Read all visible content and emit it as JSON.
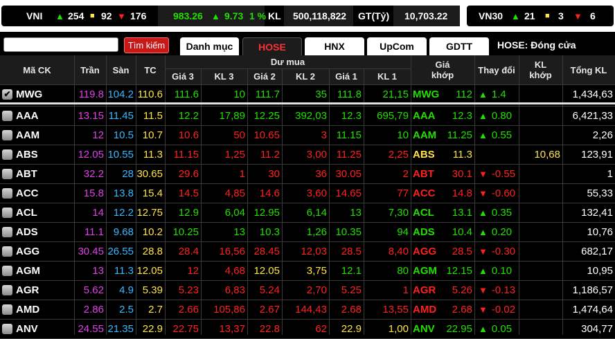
{
  "indexes": {
    "vni": {
      "name": "VNI",
      "up": "254",
      "flat": "92",
      "down": "176",
      "value": "983.26",
      "change": "9.73",
      "pct": "1 %",
      "kl_label": "KL",
      "kl": "500,118,822",
      "gt_label": "GT(Tỷ)",
      "gt": "10,703.22"
    },
    "vn30": {
      "name": "VN30",
      "up": "21",
      "flat": "3",
      "down": "6"
    }
  },
  "toolbar": {
    "search_placeholder": "",
    "search_button": "Tìm kiếm",
    "tabs": [
      "Danh mục",
      "HOSE",
      "HNX",
      "UpCom",
      "GDTT"
    ],
    "active_tab": "HOSE",
    "market_status": "HOSE:  Đóng cửa"
  },
  "headers": {
    "symbol": "Mã CK",
    "ceiling": "Trần",
    "floor": "Sàn",
    "ref": "TC",
    "bid_group": "Dư mua",
    "bid3": "Giá 3",
    "bidvol3": "KL 3",
    "bid2": "Giá 2",
    "bidvol2": "KL 2",
    "bid1": "Giá 1",
    "bidvol1": "KL 1",
    "match_price": "Giá\nkhớp",
    "change": "Thay đổi",
    "match_vol": "KL\nkhớp",
    "total_vol": "Tổng KL"
  },
  "colors": {
    "ceiling": "#e040e8",
    "floor": "#38b8ff",
    "ref": "#ffe44a",
    "up": "#22e000",
    "down": "#ff2020"
  },
  "rows": [
    {
      "sym": "MWG",
      "checked": true,
      "ceil": "119.8",
      "floor": "104.2",
      "ref": "110.6",
      "p3": "111.6",
      "v3": "10",
      "p2": "111.7",
      "v2": "35",
      "p1": "111.8",
      "v1": "21,15",
      "price": "112",
      "chg": "1.4",
      "dir": "up",
      "kl": "",
      "total": "1,434,63",
      "c3": "green",
      "c2": "green",
      "c1": "green",
      "cp": "green"
    },
    {
      "sym": "AAA",
      "checked": false,
      "ceil": "13.15",
      "floor": "11.45",
      "ref": "11.5",
      "p3": "12.2",
      "v3": "17,89",
      "p2": "12.25",
      "v2": "392,03",
      "p1": "12.3",
      "v1": "695,79",
      "price": "12.3",
      "chg": "0.80",
      "dir": "up",
      "kl": "",
      "total": "6,421,33",
      "c3": "green",
      "c2": "green",
      "c1": "green",
      "cp": "green"
    },
    {
      "sym": "AAM",
      "checked": false,
      "ceil": "12",
      "floor": "10.5",
      "ref": "10.7",
      "p3": "10.6",
      "v3": "50",
      "p2": "10.65",
      "v2": "3",
      "p1": "11.15",
      "v1": "10",
      "price": "11.25",
      "chg": "0.55",
      "dir": "up",
      "kl": "",
      "total": "2,26",
      "c3": "red",
      "c2": "red",
      "c1": "green",
      "cp": "green"
    },
    {
      "sym": "ABS",
      "checked": false,
      "ceil": "12.05",
      "floor": "10.55",
      "ref": "11.3",
      "p3": "11.15",
      "v3": "1,25",
      "p2": "11.2",
      "v2": "3,00",
      "p1": "11.25",
      "v1": "2,25",
      "price": "11.3",
      "chg": "",
      "dir": "flat",
      "kl": "10,68",
      "total": "123,91",
      "c3": "red",
      "c2": "red",
      "c1": "red",
      "cp": "yellow"
    },
    {
      "sym": "ABT",
      "checked": false,
      "ceil": "32.2",
      "floor": "28",
      "ref": "30.65",
      "p3": "29.6",
      "v3": "1",
      "p2": "30",
      "v2": "36",
      "p1": "30.05",
      "v1": "2",
      "price": "30.1",
      "chg": "-0.55",
      "dir": "down",
      "kl": "",
      "total": "1",
      "c3": "red",
      "c2": "red",
      "c1": "red",
      "cp": "red"
    },
    {
      "sym": "ACC",
      "checked": false,
      "ceil": "15.8",
      "floor": "13.8",
      "ref": "15.4",
      "p3": "14.5",
      "v3": "4,85",
      "p2": "14.6",
      "v2": "3,60",
      "p1": "14.65",
      "v1": "77",
      "price": "14.8",
      "chg": "-0.60",
      "dir": "down",
      "kl": "",
      "total": "55,33",
      "c3": "red",
      "c2": "red",
      "c1": "red",
      "cp": "red"
    },
    {
      "sym": "ACL",
      "checked": false,
      "ceil": "14",
      "floor": "12.2",
      "ref": "12.75",
      "p3": "12.9",
      "v3": "6,04",
      "p2": "12.95",
      "v2": "6,14",
      "p1": "13",
      "v1": "7,30",
      "price": "13.1",
      "chg": "0.35",
      "dir": "up",
      "kl": "",
      "total": "132,41",
      "c3": "green",
      "c2": "green",
      "c1": "green",
      "cp": "green"
    },
    {
      "sym": "ADS",
      "checked": false,
      "ceil": "11.1",
      "floor": "9.68",
      "ref": "10.2",
      "p3": "10.25",
      "v3": "13",
      "p2": "10.3",
      "v2": "1,26",
      "p1": "10.35",
      "v1": "94",
      "price": "10.4",
      "chg": "0.20",
      "dir": "up",
      "kl": "",
      "total": "10,76",
      "c3": "green",
      "c2": "green",
      "c1": "green",
      "cp": "green"
    },
    {
      "sym": "AGG",
      "checked": false,
      "ceil": "30.45",
      "floor": "26.55",
      "ref": "28.8",
      "p3": "28.4",
      "v3": "16,56",
      "p2": "28.45",
      "v2": "12,03",
      "p1": "28.5",
      "v1": "8,40",
      "price": "28.5",
      "chg": "-0.30",
      "dir": "down",
      "kl": "",
      "total": "682,17",
      "c3": "red",
      "c2": "red",
      "c1": "red",
      "cp": "red"
    },
    {
      "sym": "AGM",
      "checked": false,
      "ceil": "13",
      "floor": "11.3",
      "ref": "12.05",
      "p3": "12",
      "v3": "4,68",
      "p2": "12.05",
      "v2": "3,75",
      "p1": "12.1",
      "v1": "80",
      "price": "12.15",
      "chg": "0.10",
      "dir": "up",
      "kl": "",
      "total": "10,95",
      "c3": "red",
      "c2": "yellow",
      "c1": "green",
      "cp": "green"
    },
    {
      "sym": "AGR",
      "checked": false,
      "ceil": "5.62",
      "floor": "4.9",
      "ref": "5.39",
      "p3": "5.23",
      "v3": "6,83",
      "p2": "5.24",
      "v2": "2,70",
      "p1": "5.25",
      "v1": "1",
      "price": "5.26",
      "chg": "-0.13",
      "dir": "down",
      "kl": "",
      "total": "1,186,57",
      "c3": "red",
      "c2": "red",
      "c1": "red",
      "cp": "red"
    },
    {
      "sym": "AMD",
      "checked": false,
      "ceil": "2.86",
      "floor": "2.5",
      "ref": "2.7",
      "p3": "2.66",
      "v3": "105,86",
      "p2": "2.67",
      "v2": "144,43",
      "p1": "2.68",
      "v1": "13,55",
      "price": "2.68",
      "chg": "-0.02",
      "dir": "down",
      "kl": "",
      "total": "1,474,64",
      "c3": "red",
      "c2": "red",
      "c1": "red",
      "cp": "red"
    },
    {
      "sym": "ANV",
      "checked": false,
      "ceil": "24.55",
      "floor": "21.35",
      "ref": "22.9",
      "p3": "22.75",
      "v3": "13,37",
      "p2": "22.8",
      "v2": "62",
      "p1": "22.9",
      "v1": "1,00",
      "price": "22.95",
      "chg": "0.05",
      "dir": "up",
      "kl": "",
      "total": "304,77",
      "c3": "red",
      "c2": "red",
      "c1": "yellow",
      "cp": "green"
    }
  ]
}
